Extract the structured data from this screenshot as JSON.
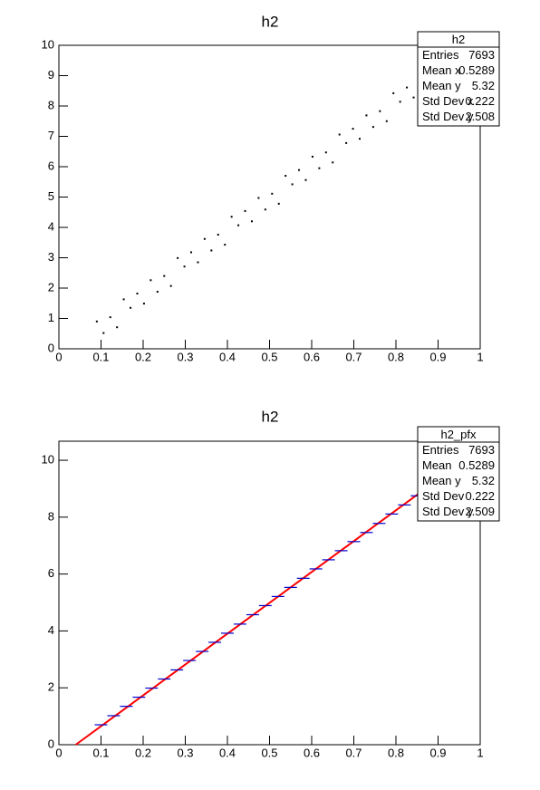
{
  "chart_data": [
    {
      "type": "scatter",
      "title": "h2",
      "color": "#000000",
      "xlim": [
        0,
        1
      ],
      "ylim": [
        0,
        10
      ],
      "xticks": [
        0,
        0.1,
        0.2,
        0.3,
        0.4,
        0.5,
        0.6,
        0.7,
        0.8,
        0.9,
        1
      ],
      "yticks": [
        0,
        1,
        2,
        3,
        4,
        5,
        6,
        7,
        8,
        9,
        10
      ],
      "x": [
        0.09,
        0.106,
        0.122,
        0.138,
        0.154,
        0.17,
        0.186,
        0.202,
        0.218,
        0.234,
        0.25,
        0.266,
        0.282,
        0.298,
        0.314,
        0.33,
        0.346,
        0.362,
        0.378,
        0.394,
        0.41,
        0.426,
        0.442,
        0.458,
        0.474,
        0.49,
        0.506,
        0.522,
        0.538,
        0.554,
        0.57,
        0.586,
        0.602,
        0.618,
        0.634,
        0.65,
        0.666,
        0.682,
        0.698,
        0.714,
        0.73,
        0.746,
        0.762,
        0.778,
        0.794,
        0.81,
        0.826,
        0.842
      ],
      "values": [
        0.9,
        0.52,
        1.04,
        0.71,
        1.63,
        1.35,
        1.82,
        1.49,
        2.26,
        1.88,
        2.4,
        2.07,
        2.99,
        2.71,
        3.18,
        2.85,
        3.62,
        3.24,
        3.76,
        3.43,
        4.35,
        4.07,
        4.54,
        4.2,
        4.97,
        4.59,
        5.11,
        4.78,
        5.7,
        5.42,
        5.89,
        5.56,
        6.33,
        5.95,
        6.47,
        6.14,
        7.06,
        6.78,
        7.25,
        6.92,
        7.69,
        7.31,
        7.83,
        7.5,
        8.42,
        8.14,
        8.61,
        8.28
      ],
      "stats": {
        "title": "h2",
        "rows": [
          {
            "label": "Entries",
            "value": 7693
          },
          {
            "label": "Mean x",
            "value": 0.5289
          },
          {
            "label": "Mean y",
            "value": 5.32
          },
          {
            "label": "Std Dev x",
            "value": 0.222
          },
          {
            "label": "Std Dev y",
            "value": 2.508
          }
        ]
      }
    },
    {
      "type": "profile",
      "title": "h2",
      "color": "#0000cc",
      "xlim": [
        0,
        1
      ],
      "ylim": [
        0,
        10.67
      ],
      "xticks": [
        0,
        0.1,
        0.2,
        0.3,
        0.4,
        0.5,
        0.6,
        0.7,
        0.8,
        0.9,
        1
      ],
      "yticks": [
        0,
        2,
        4,
        6,
        8,
        10
      ],
      "x": [
        0.1,
        0.13,
        0.16,
        0.19,
        0.22,
        0.25,
        0.28,
        0.31,
        0.34,
        0.37,
        0.4,
        0.43,
        0.46,
        0.49,
        0.52,
        0.55,
        0.58,
        0.61,
        0.64,
        0.67,
        0.7,
        0.73,
        0.76,
        0.79,
        0.82,
        0.85
      ],
      "values": [
        0.7,
        1.02,
        1.35,
        1.67,
        1.99,
        2.31,
        2.63,
        2.96,
        3.28,
        3.6,
        3.92,
        4.24,
        4.57,
        4.89,
        5.21,
        5.53,
        5.85,
        6.18,
        6.5,
        6.82,
        7.14,
        7.46,
        7.78,
        8.11,
        8.43,
        8.75
      ],
      "fit": {
        "color": "#ff0000",
        "x": [
          0.04,
          0.87
        ],
        "y": [
          0,
          9.0
        ]
      },
      "stats": {
        "title": "h2_pfx",
        "rows": [
          {
            "label": "Entries",
            "value": 7693
          },
          {
            "label": "Mean",
            "value": 0.5289
          },
          {
            "label": "Mean y",
            "value": 5.32
          },
          {
            "label": "Std Dev",
            "value": 0.222
          },
          {
            "label": "Std Dev y",
            "value": 2.509
          }
        ]
      }
    }
  ]
}
